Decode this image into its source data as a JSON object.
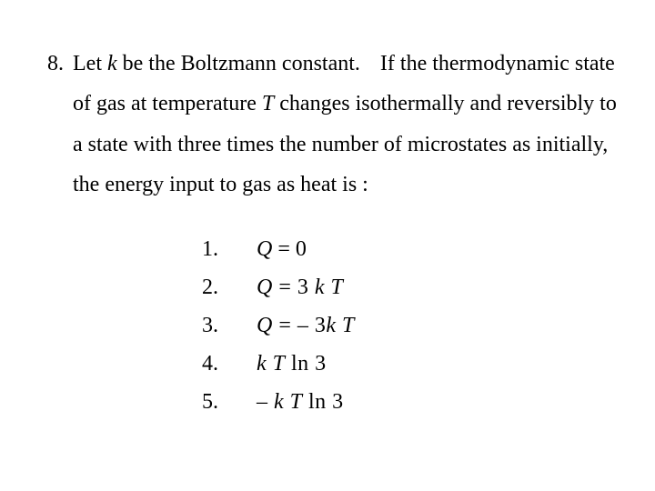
{
  "page": {
    "background_color": "#ffffff",
    "text_color": "#000000",
    "font_family": "Times New Roman",
    "base_fontsize_pt": 18,
    "line_height": 1.85
  },
  "question": {
    "number": "8.",
    "stem_part1": "Let ",
    "var_k": "k",
    "stem_part2": " be the Boltzmann constant.",
    "stem_part3": "If the thermodynamic state of gas at temperature ",
    "var_T": "T",
    "stem_part4": " changes isothermally and reversibly to a state with three times the number of microstates as initially, the energy input to gas as heat is :"
  },
  "options": [
    {
      "num": "1.",
      "Q": "Q",
      "rest": " = 0"
    },
    {
      "num": "2.",
      "Q": "Q",
      "rest_a": " = 3",
      "k": "k",
      "T": "T"
    },
    {
      "num": "3.",
      "Q": "Q",
      "rest_a": " = – 3",
      "k": "k",
      "T": "T"
    },
    {
      "num": "4.",
      "k": "k",
      "T": "T",
      "ln": "  ln 3"
    },
    {
      "num": "5.",
      "pre": " – ",
      "k": "k",
      "T": "T",
      "ln": "  ln 3"
    }
  ]
}
